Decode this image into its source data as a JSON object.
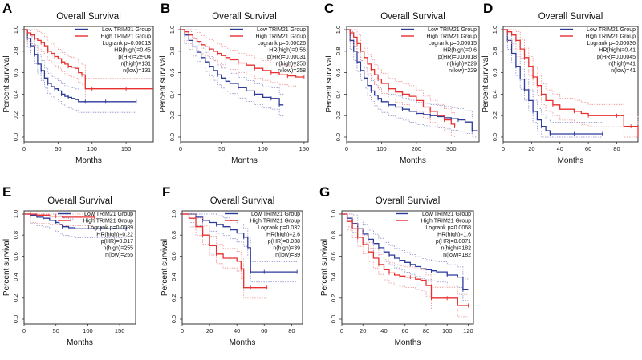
{
  "figure": {
    "panel_letters": [
      "A",
      "B",
      "C",
      "D",
      "E",
      "F",
      "G"
    ]
  },
  "colors": {
    "low": "#2b3a9b",
    "high": "#e8302f",
    "ci_low": "#8a8fc7",
    "ci_high": "#ee8f8f",
    "axis": "#333333"
  },
  "chart_data": [
    {
      "panel": "A",
      "type": "line",
      "title": "Overall Survival",
      "xlabel": "Months",
      "ylabel": "Percent survival",
      "xlim": [
        0,
        190
      ],
      "ylim": [
        0,
        1
      ],
      "xticks": [
        0,
        50,
        100,
        150
      ],
      "yticks": [
        0,
        0.2,
        0.4,
        0.6,
        0.8,
        1.0
      ],
      "legend": {
        "low_label": "Low TRIM21 Group",
        "high_label": "High TRIM21 Group",
        "stats": [
          "Logrank p=0.00013",
          "HR(high)=0.45",
          "p(HR)=2e-04",
          "n(high)=131",
          "n(low)=131"
        ]
      },
      "series": [
        {
          "name": "Low TRIM21 Group",
          "x": [
            0,
            5,
            10,
            15,
            20,
            25,
            30,
            35,
            40,
            45,
            50,
            55,
            60,
            65,
            70,
            75,
            80,
            90,
            100,
            120,
            140,
            165
          ],
          "y": [
            1.0,
            0.92,
            0.85,
            0.77,
            0.68,
            0.62,
            0.55,
            0.5,
            0.47,
            0.45,
            0.43,
            0.4,
            0.38,
            0.37,
            0.36,
            0.35,
            0.33,
            0.33,
            0.33,
            0.33,
            0.33,
            0.33
          ]
        },
        {
          "name": "High TRIM21 Group",
          "x": [
            0,
            5,
            10,
            15,
            20,
            25,
            30,
            35,
            40,
            45,
            50,
            55,
            60,
            65,
            70,
            75,
            80,
            85,
            90,
            100,
            120,
            150,
            190
          ],
          "y": [
            1.0,
            0.97,
            0.95,
            0.92,
            0.9,
            0.88,
            0.85,
            0.8,
            0.78,
            0.75,
            0.73,
            0.7,
            0.68,
            0.66,
            0.65,
            0.64,
            0.6,
            0.58,
            0.45,
            0.45,
            0.45,
            0.45,
            0.45
          ]
        }
      ]
    },
    {
      "panel": "B",
      "type": "line",
      "title": "Overall Survival",
      "xlabel": "Months",
      "ylabel": "Percent survival",
      "xlim": [
        0,
        155
      ],
      "ylim": [
        0,
        1
      ],
      "xticks": [
        0,
        50,
        100,
        150
      ],
      "yticks": [
        0,
        0.2,
        0.4,
        0.6,
        0.8,
        1.0
      ],
      "legend": {
        "low_label": "Low TRIM21 Group",
        "high_label": "High TRIM21 Group",
        "stats": [
          "Logrank p=0.00026",
          "HR(high)=0.56",
          "p(HR)=0.00031",
          "n(high)=258",
          "n(low)=258"
        ]
      },
      "series": [
        {
          "name": "Low TRIM21 Group",
          "x": [
            0,
            5,
            10,
            15,
            20,
            25,
            30,
            35,
            40,
            45,
            50,
            55,
            60,
            70,
            80,
            90,
            100,
            110,
            115,
            120,
            125
          ],
          "y": [
            1.0,
            0.95,
            0.9,
            0.84,
            0.79,
            0.74,
            0.7,
            0.66,
            0.62,
            0.58,
            0.55,
            0.52,
            0.5,
            0.46,
            0.43,
            0.4,
            0.37,
            0.36,
            0.36,
            0.3,
            0.3
          ]
        },
        {
          "name": "High TRIM21 Group",
          "x": [
            0,
            5,
            10,
            15,
            20,
            25,
            30,
            35,
            40,
            45,
            50,
            55,
            60,
            70,
            80,
            90,
            100,
            110,
            120,
            130,
            140,
            150
          ],
          "y": [
            1.0,
            0.98,
            0.95,
            0.92,
            0.89,
            0.86,
            0.84,
            0.82,
            0.8,
            0.78,
            0.76,
            0.74,
            0.72,
            0.69,
            0.67,
            0.64,
            0.62,
            0.6,
            0.58,
            0.57,
            0.56,
            0.56
          ]
        }
      ]
    },
    {
      "panel": "C",
      "type": "line",
      "title": "Overall Survival",
      "xlabel": "Months",
      "ylabel": "Percent survival",
      "xlim": [
        0,
        380
      ],
      "ylim": [
        0,
        1
      ],
      "xticks": [
        0,
        100,
        200,
        300
      ],
      "yticks": [
        0,
        0.2,
        0.4,
        0.6,
        0.8,
        1.0
      ],
      "legend": {
        "low_label": "Low TRIM21 Group",
        "high_label": "High TRIM21 Group",
        "stats": [
          "Logrank p=0.00015",
          "HR(high)=0.6",
          "p(HR)=0.00018",
          "n(high)=229",
          "n(low)=229"
        ]
      },
      "series": [
        {
          "name": "Low TRIM21 Group",
          "x": [
            0,
            10,
            20,
            30,
            40,
            50,
            60,
            70,
            80,
            90,
            100,
            120,
            140,
            160,
            180,
            200,
            220,
            240,
            260,
            280,
            300,
            320,
            340,
            360,
            375
          ],
          "y": [
            1.0,
            0.9,
            0.8,
            0.7,
            0.62,
            0.55,
            0.48,
            0.43,
            0.39,
            0.36,
            0.33,
            0.3,
            0.28,
            0.26,
            0.24,
            0.22,
            0.21,
            0.2,
            0.19,
            0.18,
            0.17,
            0.16,
            0.14,
            0.06,
            0.05
          ]
        },
        {
          "name": "High TRIM21 Group",
          "x": [
            0,
            10,
            20,
            30,
            40,
            50,
            60,
            70,
            80,
            90,
            100,
            120,
            140,
            160,
            180,
            200,
            220,
            240,
            260,
            280,
            300,
            310
          ],
          "y": [
            1.0,
            0.97,
            0.93,
            0.87,
            0.8,
            0.74,
            0.68,
            0.63,
            0.58,
            0.54,
            0.5,
            0.45,
            0.42,
            0.4,
            0.38,
            0.34,
            0.28,
            0.24,
            0.2,
            0.16,
            0.12,
            0.1
          ]
        }
      ]
    },
    {
      "panel": "D",
      "type": "line",
      "title": "Overall Survival",
      "xlabel": "Months",
      "ylabel": "Percent survival",
      "xlim": [
        0,
        95
      ],
      "ylim": [
        0,
        1
      ],
      "xticks": [
        0,
        20,
        40,
        60,
        80
      ],
      "yticks": [
        0,
        0.2,
        0.4,
        0.6,
        0.8,
        1.0
      ],
      "legend": {
        "low_label": "Low TRIM21 Group",
        "high_label": "High TRIM21 Group",
        "stats": [
          "Logrank p=0.00036",
          "HR(high)=0.41",
          "p(HR)=0.00045",
          "n(high)=41",
          "n(low)=41"
        ]
      },
      "series": [
        {
          "name": "Low TRIM21 Group",
          "x": [
            0,
            3,
            6,
            9,
            12,
            15,
            18,
            21,
            24,
            27,
            30,
            33,
            40,
            50,
            60,
            70
          ],
          "y": [
            1.0,
            0.9,
            0.78,
            0.66,
            0.54,
            0.44,
            0.34,
            0.24,
            0.16,
            0.1,
            0.06,
            0.03,
            0.03,
            0.03,
            0.03,
            0.03
          ]
        },
        {
          "name": "High TRIM21 Group",
          "x": [
            0,
            3,
            6,
            9,
            12,
            15,
            18,
            21,
            24,
            27,
            30,
            35,
            40,
            50,
            55,
            60,
            70,
            80,
            85,
            90,
            95
          ],
          "y": [
            1.0,
            0.98,
            0.95,
            0.9,
            0.82,
            0.74,
            0.66,
            0.56,
            0.48,
            0.4,
            0.34,
            0.3,
            0.26,
            0.24,
            0.22,
            0.2,
            0.2,
            0.2,
            0.1,
            0.1,
            0.0
          ]
        }
      ]
    },
    {
      "panel": "E",
      "type": "line",
      "title": "Overall Survival",
      "xlabel": "Months",
      "ylabel": "Percent survival",
      "xlim": [
        0,
        175
      ],
      "ylim": [
        0,
        1
      ],
      "xticks": [
        0,
        50,
        100,
        150
      ],
      "yticks": [
        0,
        0.2,
        0.4,
        0.6,
        0.8,
        1.0
      ],
      "legend": {
        "low_label": "Low TRIM21 Group",
        "high_label": "High TRIM21 Group",
        "stats": [
          "Logrank p=0.0089",
          "HR(high)=0.22",
          "p(HR)=0.017",
          "n(high)=255",
          "n(low)=255"
        ]
      },
      "series": [
        {
          "name": "Low TRIM21 Group",
          "x": [
            0,
            10,
            20,
            30,
            40,
            50,
            55,
            60,
            70,
            80,
            100,
            120,
            140,
            160
          ],
          "y": [
            1.0,
            0.99,
            0.97,
            0.96,
            0.94,
            0.92,
            0.9,
            0.88,
            0.87,
            0.86,
            0.86,
            0.86,
            0.86,
            0.86
          ]
        },
        {
          "name": "High TRIM21 Group",
          "x": [
            0,
            10,
            20,
            30,
            40,
            50,
            60,
            80,
            100,
            110
          ],
          "y": [
            1.0,
            1.0,
            0.99,
            0.99,
            0.98,
            0.98,
            0.97,
            0.97,
            0.97,
            0.97
          ]
        }
      ]
    },
    {
      "panel": "F",
      "type": "line",
      "title": "Overall Survival",
      "xlabel": "Months",
      "ylabel": "Percent survival",
      "xlim": [
        0,
        88
      ],
      "ylim": [
        0,
        1
      ],
      "xticks": [
        0,
        20,
        40,
        60,
        80
      ],
      "yticks": [
        0,
        0.2,
        0.4,
        0.6,
        0.8,
        1.0
      ],
      "legend": {
        "low_label": "Low TRIM21 Group",
        "high_label": "High TRIM21 Group",
        "stats": [
          "Logrank p=0.032",
          "HR(high)=2.6",
          "p(HR)=0.038",
          "n(high)=39",
          "n(low)=39"
        ]
      },
      "series": [
        {
          "name": "Low TRIM21 Group",
          "x": [
            0,
            5,
            10,
            15,
            20,
            25,
            30,
            35,
            40,
            45,
            48,
            50,
            55,
            60,
            70,
            84
          ],
          "y": [
            1.0,
            1.0,
            0.97,
            0.94,
            0.92,
            0.9,
            0.88,
            0.85,
            0.82,
            0.78,
            0.68,
            0.45,
            0.45,
            0.45,
            0.45,
            0.45
          ]
        },
        {
          "name": "High TRIM21 Group",
          "x": [
            0,
            5,
            10,
            15,
            20,
            25,
            30,
            35,
            40,
            43,
            45,
            50,
            55,
            62
          ],
          "y": [
            1.0,
            0.96,
            0.88,
            0.8,
            0.7,
            0.62,
            0.58,
            0.58,
            0.55,
            0.48,
            0.3,
            0.3,
            0.3,
            0.3
          ]
        }
      ]
    },
    {
      "panel": "G",
      "type": "line",
      "title": "Overall Survival",
      "xlabel": "Months",
      "ylabel": "Percent survival",
      "xlim": [
        0,
        125
      ],
      "ylim": [
        0,
        1
      ],
      "xticks": [
        0,
        20,
        40,
        60,
        80,
        100,
        120
      ],
      "yticks": [
        0,
        0.2,
        0.4,
        0.6,
        0.8,
        1.0
      ],
      "legend": {
        "low_label": "Low TRIM21 Group",
        "high_label": "High TRIM21 Group",
        "stats": [
          "Logrank p=0.0068",
          "HR(high)=1.6",
          "p(HR)=0.0071",
          "n(high)=182",
          "n(low)=182"
        ]
      },
      "series": [
        {
          "name": "Low TRIM21 Group",
          "x": [
            0,
            5,
            10,
            15,
            20,
            25,
            30,
            35,
            40,
            45,
            50,
            55,
            60,
            65,
            70,
            75,
            80,
            85,
            90,
            100,
            110,
            115,
            120
          ],
          "y": [
            1.0,
            0.96,
            0.91,
            0.86,
            0.81,
            0.76,
            0.72,
            0.68,
            0.64,
            0.61,
            0.58,
            0.56,
            0.54,
            0.52,
            0.5,
            0.48,
            0.47,
            0.46,
            0.45,
            0.42,
            0.4,
            0.28,
            0.28
          ]
        },
        {
          "name": "High TRIM21 Group",
          "x": [
            0,
            5,
            10,
            15,
            20,
            25,
            30,
            35,
            40,
            45,
            50,
            55,
            60,
            65,
            70,
            75,
            80,
            85,
            90,
            100,
            110,
            120
          ],
          "y": [
            1.0,
            0.93,
            0.86,
            0.78,
            0.71,
            0.64,
            0.58,
            0.52,
            0.47,
            0.44,
            0.42,
            0.41,
            0.4,
            0.4,
            0.38,
            0.37,
            0.32,
            0.2,
            0.2,
            0.2,
            0.13,
            0.13
          ]
        }
      ]
    }
  ]
}
